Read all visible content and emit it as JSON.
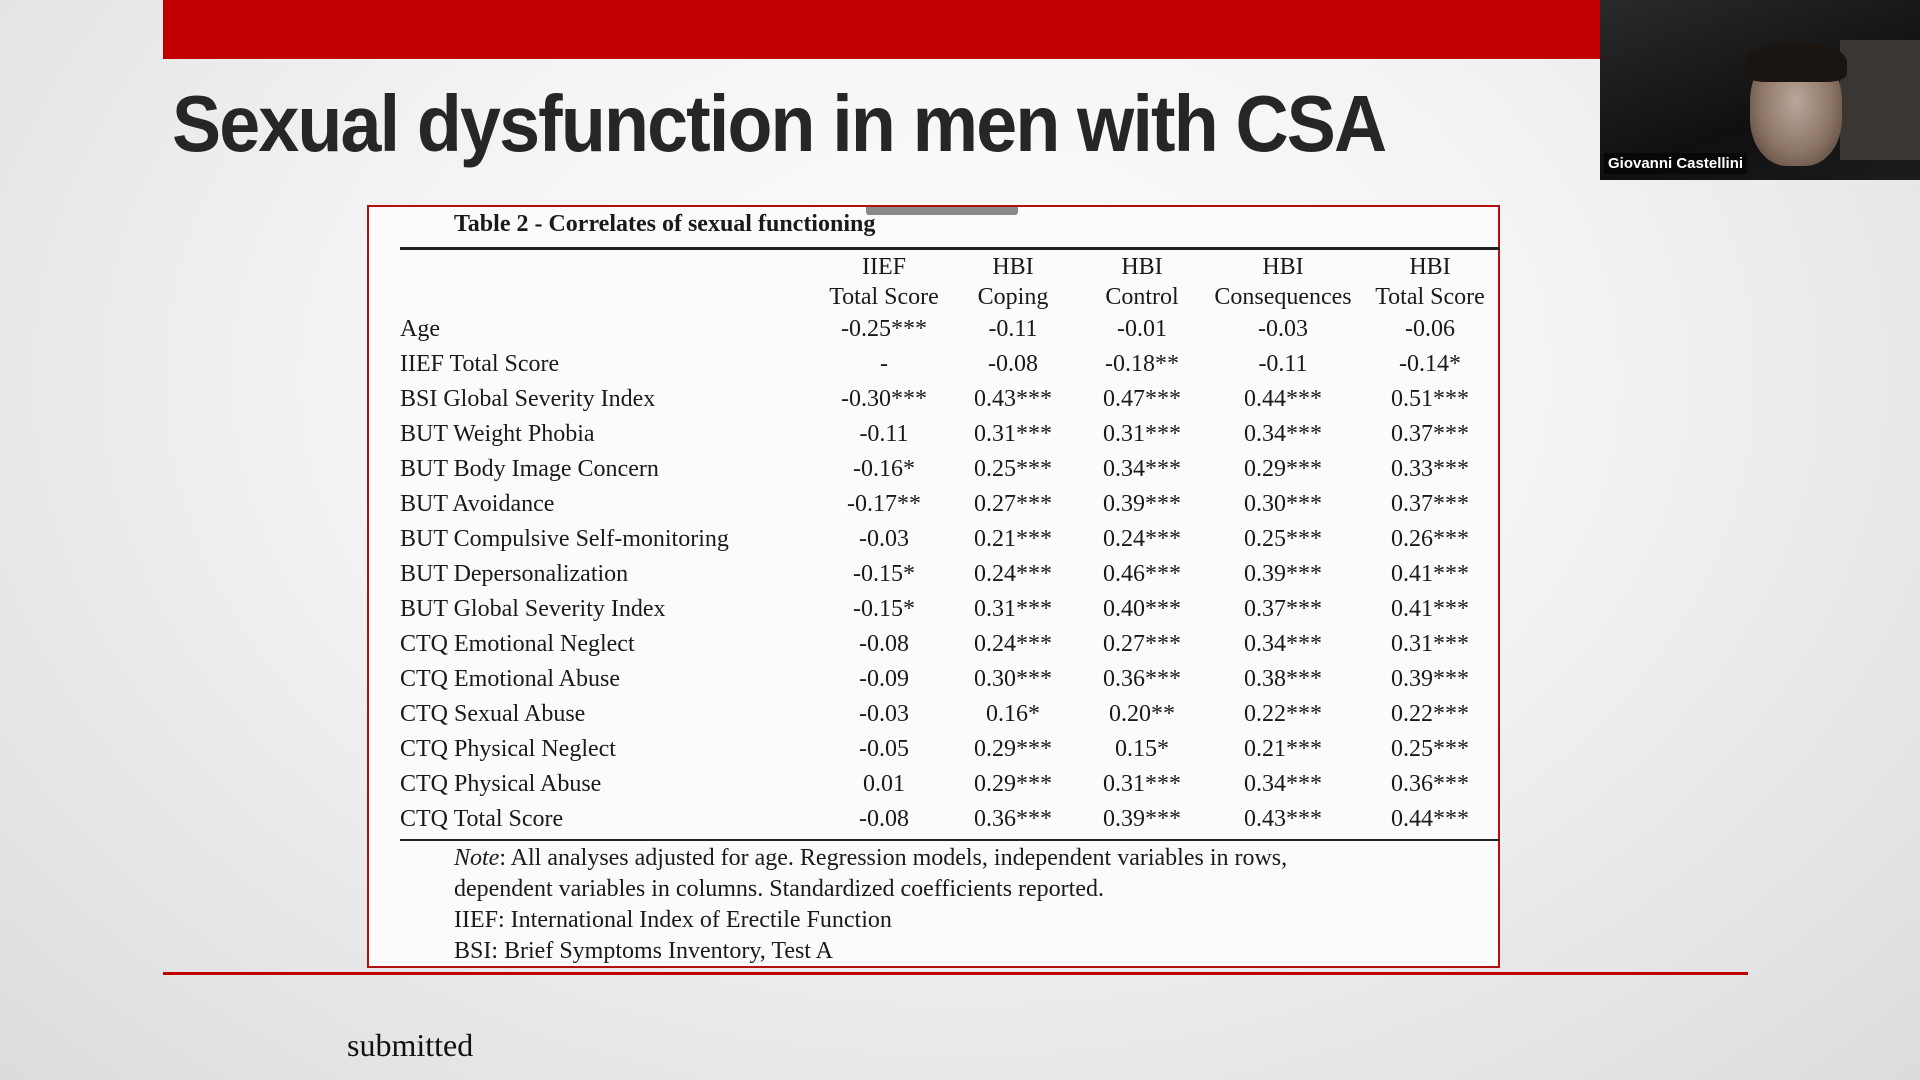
{
  "slide": {
    "title": "Sexual dysfunction in men with CSA",
    "footer": "submitted"
  },
  "video": {
    "participant_name": "Giovanni Castellini"
  },
  "table": {
    "caption": "Table 2 - Correlates of sexual functioning",
    "headers": [
      {
        "line1": "IIEF",
        "line2": "Total Score"
      },
      {
        "line1": "HBI",
        "line2": "Coping"
      },
      {
        "line1": "HBI",
        "line2": "Control"
      },
      {
        "line1": "HBI",
        "line2": "Consequences"
      },
      {
        "line1": "HBI",
        "line2": "Total Score"
      }
    ],
    "rows": [
      {
        "label": "Age",
        "values": [
          "-0.25***",
          "-0.11",
          "-0.01",
          "-0.03",
          "-0.06"
        ]
      },
      {
        "label": "IIEF Total Score",
        "values": [
          "-",
          "-0.08",
          "-0.18**",
          "-0.11",
          "-0.14*"
        ]
      },
      {
        "label": "BSI Global Severity Index",
        "values": [
          "-0.30***",
          "0.43***",
          "0.47***",
          "0.44***",
          "0.51***"
        ]
      },
      {
        "label": "BUT Weight Phobia",
        "values": [
          "-0.11",
          "0.31***",
          "0.31***",
          "0.34***",
          "0.37***"
        ]
      },
      {
        "label": "BUT Body Image Concern",
        "values": [
          "-0.16*",
          "0.25***",
          "0.34***",
          "0.29***",
          "0.33***"
        ]
      },
      {
        "label": "BUT Avoidance",
        "values": [
          "-0.17**",
          "0.27***",
          "0.39***",
          "0.30***",
          "0.37***"
        ]
      },
      {
        "label": "BUT Compulsive Self-monitoring",
        "values": [
          "-0.03",
          "0.21***",
          "0.24***",
          "0.25***",
          "0.26***"
        ]
      },
      {
        "label": "BUT Depersonalization",
        "values": [
          "-0.15*",
          "0.24***",
          "0.46***",
          "0.39***",
          "0.41***"
        ]
      },
      {
        "label": "BUT Global Severity Index",
        "values": [
          "-0.15*",
          "0.31***",
          "0.40***",
          "0.37***",
          "0.41***"
        ]
      },
      {
        "label": "CTQ Emotional Neglect",
        "values": [
          "-0.08",
          "0.24***",
          "0.27***",
          "0.34***",
          "0.31***"
        ]
      },
      {
        "label": "CTQ Emotional Abuse",
        "values": [
          "-0.09",
          "0.30***",
          "0.36***",
          "0.38***",
          "0.39***"
        ]
      },
      {
        "label": "CTQ Sexual Abuse",
        "values": [
          "-0.03",
          "0.16*",
          "0.20**",
          "0.22***",
          "0.22***"
        ]
      },
      {
        "label": "CTQ Physical Neglect",
        "values": [
          "-0.05",
          "0.29***",
          "0.15*",
          "0.21***",
          "0.25***"
        ]
      },
      {
        "label": "CTQ Physical Abuse",
        "values": [
          "0.01",
          "0.29***",
          "0.31***",
          "0.34***",
          "0.36***"
        ]
      },
      {
        "label": "CTQ Total Score",
        "values": [
          "-0.08",
          "0.36***",
          "0.39***",
          "0.43***",
          "0.44***"
        ]
      }
    ],
    "note": {
      "prefix": "Note",
      "line1_rest": ": All analyses adjusted for age. Regression models, independent variables in rows,",
      "line2": "dependent variables in columns. Standardized coefficients reported.",
      "line3": "IIEF: International Index of Erectile Function",
      "line4": "BSI: Brief Symptoms Inventory, Test A"
    }
  },
  "colors": {
    "accent_red": "#c00000",
    "title_text": "#262626"
  }
}
